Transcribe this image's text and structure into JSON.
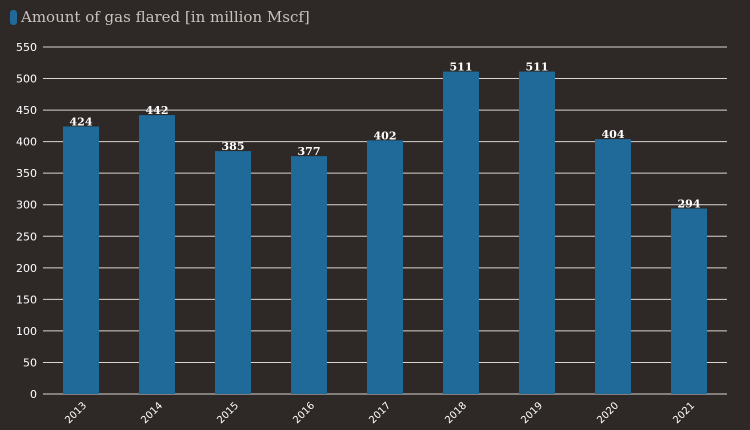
{
  "legend": {
    "label": "Amount of gas flared [in million Mscf]",
    "swatch_color": "#1f6a99"
  },
  "chart_data": {
    "type": "bar",
    "categories": [
      "2013",
      "2014",
      "2015",
      "2016",
      "2017",
      "2018",
      "2019",
      "2020",
      "2021"
    ],
    "series": [
      {
        "name": "Amount of gas flared [in million Mscf]",
        "values": [
          424,
          442,
          385,
          377,
          402,
          511,
          511,
          404,
          294
        ],
        "color": "#1f6a99"
      }
    ],
    "title": "",
    "xlabel": "",
    "ylabel": "",
    "ylim": [
      0,
      550
    ],
    "yticks": [
      0,
      50,
      100,
      150,
      200,
      250,
      300,
      350,
      400,
      450,
      500,
      550
    ],
    "grid": true,
    "data_labels": true,
    "legend_position": "top-left"
  }
}
